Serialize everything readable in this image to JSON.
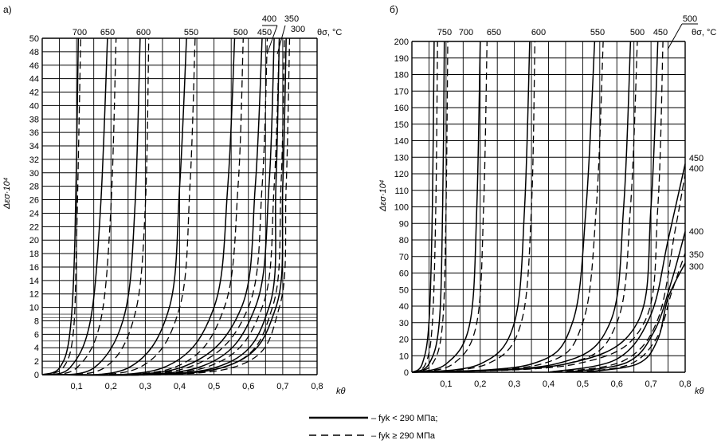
{
  "chart_data": [
    {
      "type": "line",
      "panel_label": "а)",
      "xlabel": "kθ",
      "ylabel": "Δεσ·10⁴",
      "xlim": [
        0,
        0.8
      ],
      "ylim": [
        0,
        50
      ],
      "x_ticks": [
        "0,1",
        "0,2",
        "0,3",
        "0,4",
        "0,5",
        "0,6",
        "0,7",
        "0,8"
      ],
      "y_ticks": [
        "0",
        "2",
        "4",
        "6",
        "8",
        "10",
        "12",
        "14",
        "16",
        "18",
        "20",
        "22",
        "24",
        "26",
        "28",
        "30",
        "32",
        "34",
        "36",
        "38",
        "40",
        "42",
        "44",
        "46",
        "48",
        "50"
      ],
      "grid": true,
      "temperature_axis_label": "θσ, °C",
      "series": [
        {
          "temperature": "700",
          "style": "solid",
          "points": [
            [
              0,
              0
            ],
            [
              0.05,
              1
            ],
            [
              0.08,
              6
            ],
            [
              0.095,
              20
            ],
            [
              0.105,
              50
            ]
          ]
        },
        {
          "temperature": "700",
          "style": "dashed",
          "points": [
            [
              0,
              0
            ],
            [
              0.06,
              1
            ],
            [
              0.09,
              6
            ],
            [
              0.1,
              20
            ],
            [
              0.112,
              50
            ]
          ]
        },
        {
          "temperature": "650",
          "style": "solid",
          "points": [
            [
              0,
              0
            ],
            [
              0.08,
              1
            ],
            [
              0.14,
              8
            ],
            [
              0.17,
              25
            ],
            [
              0.19,
              50
            ]
          ]
        },
        {
          "temperature": "650",
          "style": "dashed",
          "points": [
            [
              0,
              0
            ],
            [
              0.1,
              1
            ],
            [
              0.17,
              8
            ],
            [
              0.2,
              25
            ],
            [
              0.215,
              50
            ]
          ]
        },
        {
          "temperature": "600",
          "style": "solid",
          "points": [
            [
              0,
              0
            ],
            [
              0.15,
              1
            ],
            [
              0.24,
              9
            ],
            [
              0.27,
              25
            ],
            [
              0.285,
              50
            ]
          ]
        },
        {
          "temperature": "600",
          "style": "dashed",
          "points": [
            [
              0,
              0
            ],
            [
              0.18,
              1
            ],
            [
              0.27,
              9
            ],
            [
              0.3,
              25
            ],
            [
              0.31,
              50
            ]
          ]
        },
        {
          "temperature": "550",
          "style": "solid",
          "points": [
            [
              0,
              0
            ],
            [
              0.25,
              1
            ],
            [
              0.37,
              10
            ],
            [
              0.4,
              28
            ],
            [
              0.42,
              50
            ]
          ]
        },
        {
          "temperature": "550",
          "style": "dashed",
          "points": [
            [
              0,
              0
            ],
            [
              0.28,
              1
            ],
            [
              0.4,
              10
            ],
            [
              0.43,
              28
            ],
            [
              0.445,
              50
            ]
          ]
        },
        {
          "temperature": "500",
          "style": "solid",
          "points": [
            [
              0,
              0
            ],
            [
              0.35,
              1
            ],
            [
              0.5,
              10
            ],
            [
              0.54,
              28
            ],
            [
              0.56,
              50
            ]
          ]
        },
        {
          "temperature": "500",
          "style": "dashed",
          "points": [
            [
              0,
              0
            ],
            [
              0.38,
              1
            ],
            [
              0.53,
              10
            ],
            [
              0.57,
              28
            ],
            [
              0.585,
              50
            ]
          ]
        },
        {
          "temperature": "450",
          "style": "solid",
          "points": [
            [
              0,
              0
            ],
            [
              0.4,
              1
            ],
            [
              0.58,
              10
            ],
            [
              0.62,
              28
            ],
            [
              0.64,
              50
            ]
          ]
        },
        {
          "temperature": "450",
          "style": "dashed",
          "points": [
            [
              0,
              0
            ],
            [
              0.42,
              1
            ],
            [
              0.6,
              10
            ],
            [
              0.64,
              28
            ],
            [
              0.655,
              50
            ]
          ]
        },
        {
          "temperature": "400",
          "style": "solid",
          "points": [
            [
              0,
              0
            ],
            [
              0.45,
              1
            ],
            [
              0.62,
              10
            ],
            [
              0.66,
              28
            ],
            [
              0.675,
              50
            ]
          ]
        },
        {
          "temperature": "400",
          "style": "dashed",
          "points": [
            [
              0,
              0
            ],
            [
              0.47,
              1
            ],
            [
              0.64,
              10
            ],
            [
              0.675,
              28
            ],
            [
              0.69,
              50
            ]
          ]
        },
        {
          "temperature": "350",
          "style": "solid",
          "points": [
            [
              0,
              0
            ],
            [
              0.5,
              1
            ],
            [
              0.66,
              10
            ],
            [
              0.68,
              28
            ],
            [
              0.69,
              50
            ]
          ]
        },
        {
          "temperature": "350",
          "style": "dashed",
          "points": [
            [
              0,
              0
            ],
            [
              0.52,
              1
            ],
            [
              0.67,
              10
            ],
            [
              0.695,
              28
            ],
            [
              0.705,
              50
            ]
          ]
        },
        {
          "temperature": "300",
          "style": "solid",
          "points": [
            [
              0,
              0
            ],
            [
              0.52,
              1
            ],
            [
              0.68,
              10
            ],
            [
              0.7,
              28
            ],
            [
              0.71,
              50
            ]
          ]
        },
        {
          "temperature": "300",
          "style": "dashed",
          "points": [
            [
              0,
              0
            ],
            [
              0.55,
              1
            ],
            [
              0.69,
              10
            ],
            [
              0.71,
              28
            ],
            [
              0.72,
              50
            ]
          ]
        }
      ]
    },
    {
      "type": "line",
      "panel_label": "б)",
      "xlabel": "kθ",
      "ylabel": "Δεσ·10⁴",
      "xlim": [
        0,
        0.8
      ],
      "ylim": [
        0,
        200
      ],
      "x_ticks": [
        "0,1",
        "0,2",
        "0,3",
        "0,4",
        "0,5",
        "0,6",
        "0,7",
        "0,8"
      ],
      "y_ticks": [
        "0",
        "10",
        "20",
        "30",
        "40",
        "50",
        "60",
        "70",
        "80",
        "90",
        "100",
        "110",
        "120",
        "130",
        "140",
        "150",
        "160",
        "170",
        "180",
        "190",
        "200"
      ],
      "grid": true,
      "temperature_axis_label": "θσ, °C",
      "series": [
        {
          "temperature": "750",
          "style": "solid",
          "points": [
            [
              0,
              0
            ],
            [
              0.03,
              5
            ],
            [
              0.05,
              30
            ],
            [
              0.06,
              100
            ],
            [
              0.065,
              200
            ]
          ]
        },
        {
          "temperature": "750",
          "style": "dashed",
          "points": [
            [
              0,
              0
            ],
            [
              0.04,
              5
            ],
            [
              0.06,
              30
            ],
            [
              0.07,
              100
            ],
            [
              0.075,
              200
            ]
          ]
        },
        {
          "temperature": "700",
          "style": "solid",
          "points": [
            [
              0,
              0
            ],
            [
              0.05,
              5
            ],
            [
              0.08,
              30
            ],
            [
              0.09,
              100
            ],
            [
              0.095,
              200
            ]
          ]
        },
        {
          "temperature": "700",
          "style": "dashed",
          "points": [
            [
              0,
              0
            ],
            [
              0.06,
              5
            ],
            [
              0.09,
              30
            ],
            [
              0.1,
              100
            ],
            [
              0.105,
              200
            ]
          ]
        },
        {
          "temperature": "650",
          "style": "solid",
          "points": [
            [
              0,
              0
            ],
            [
              0.1,
              5
            ],
            [
              0.17,
              30
            ],
            [
              0.19,
              100
            ],
            [
              0.2,
              200
            ]
          ]
        },
        {
          "temperature": "650",
          "style": "dashed",
          "points": [
            [
              0,
              0
            ],
            [
              0.12,
              5
            ],
            [
              0.19,
              30
            ],
            [
              0.21,
              100
            ],
            [
              0.22,
              200
            ]
          ]
        },
        {
          "temperature": "600",
          "style": "solid",
          "points": [
            [
              0,
              0
            ],
            [
              0.2,
              5
            ],
            [
              0.3,
              30
            ],
            [
              0.33,
              100
            ],
            [
              0.345,
              200
            ]
          ]
        },
        {
          "temperature": "600",
          "style": "dashed",
          "points": [
            [
              0,
              0
            ],
            [
              0.22,
              5
            ],
            [
              0.32,
              30
            ],
            [
              0.35,
              100
            ],
            [
              0.36,
              200
            ]
          ]
        },
        {
          "temperature": "550",
          "style": "solid",
          "points": [
            [
              0,
              0
            ],
            [
              0.35,
              5
            ],
            [
              0.47,
              30
            ],
            [
              0.51,
              100
            ],
            [
              0.535,
              200
            ]
          ]
        },
        {
          "temperature": "550",
          "style": "dashed",
          "points": [
            [
              0,
              0
            ],
            [
              0.38,
              5
            ],
            [
              0.5,
              30
            ],
            [
              0.54,
              100
            ],
            [
              0.56,
              200
            ]
          ]
        },
        {
          "temperature": "500",
          "style": "solid",
          "points": [
            [
              0,
              0
            ],
            [
              0.42,
              5
            ],
            [
              0.58,
              30
            ],
            [
              0.62,
              100
            ],
            [
              0.64,
              200
            ]
          ]
        },
        {
          "temperature": "500",
          "style": "dashed",
          "points": [
            [
              0,
              0
            ],
            [
              0.45,
              5
            ],
            [
              0.6,
              30
            ],
            [
              0.64,
              100
            ],
            [
              0.66,
              200
            ]
          ]
        },
        {
          "temperature": "450",
          "style": "solid",
          "points": [
            [
              0,
              0
            ],
            [
              0.45,
              5
            ],
            [
              0.66,
              30
            ],
            [
              0.7,
              100
            ],
            [
              0.72,
              200
            ]
          ]
        },
        {
          "temperature": "450",
          "style": "dashed",
          "points": [
            [
              0,
              0
            ],
            [
              0.48,
              5
            ],
            [
              0.68,
              30
            ],
            [
              0.72,
              100
            ],
            [
              0.735,
              200
            ]
          ]
        },
        {
          "temperature": "450",
          "style": "solid",
          "points": [
            [
              0.4,
              0
            ],
            [
              0.6,
              8
            ],
            [
              0.7,
              35
            ],
            [
              0.75,
              80
            ],
            [
              0.8,
              126
            ]
          ]
        },
        {
          "temperature": "400",
          "style": "dashed",
          "points": [
            [
              0.42,
              0
            ],
            [
              0.62,
              7
            ],
            [
              0.72,
              32
            ],
            [
              0.77,
              85
            ],
            [
              0.8,
              120
            ]
          ]
        },
        {
          "temperature": "400",
          "style": "solid",
          "points": [
            [
              0.45,
              0
            ],
            [
              0.63,
              6
            ],
            [
              0.71,
              25
            ],
            [
              0.76,
              55
            ],
            [
              0.8,
              85
            ]
          ]
        },
        {
          "temperature": "350",
          "style": "dashed",
          "points": [
            [
              0.48,
              0
            ],
            [
              0.64,
              5
            ],
            [
              0.72,
              22
            ],
            [
              0.76,
              48
            ],
            [
              0.8,
              72
            ]
          ]
        },
        {
          "temperature": "300",
          "style": "solid",
          "points": [
            [
              0.5,
              0
            ],
            [
              0.66,
              5
            ],
            [
              0.72,
              20
            ],
            [
              0.75,
              45
            ],
            [
              0.8,
              66
            ]
          ]
        }
      ]
    }
  ],
  "panel_a": {
    "label": "а)",
    "temp_axis_label": "θσ, °C",
    "top_labels": [
      "700",
      "650",
      "600",
      "550",
      "500",
      "450",
      "400",
      "350",
      "300"
    ],
    "right_labels": []
  },
  "panel_b": {
    "label": "б)",
    "temp_axis_label": "θσ, °C",
    "top_labels": [
      "750",
      "700",
      "650",
      "600",
      "550",
      "500",
      "450",
      "500"
    ],
    "right_labels": [
      "450",
      "400",
      "400",
      "350",
      "300"
    ]
  },
  "legend": {
    "solid_label": "– fyk < 290 МПа;",
    "dashed_label": "– fyk ≥ 290 МПа"
  }
}
